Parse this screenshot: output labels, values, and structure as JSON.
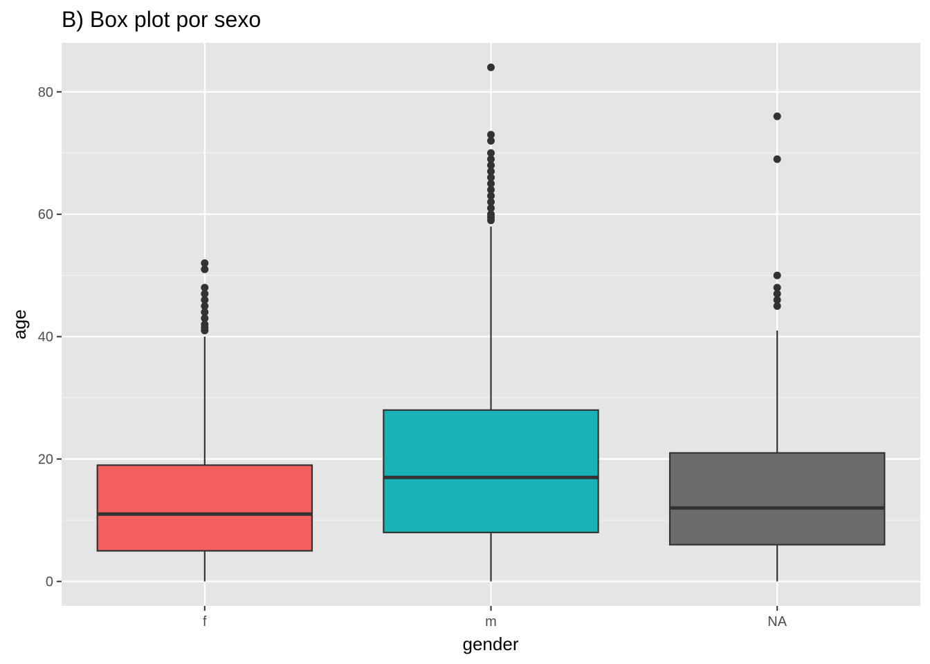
{
  "chart_data": {
    "type": "boxplot",
    "title": "B) Box plot por sexo",
    "xlabel": "gender",
    "ylabel": "age",
    "ylim": [
      -4,
      88
    ],
    "y_ticks": [
      0,
      20,
      40,
      60,
      80
    ],
    "grid": true,
    "legend": "none",
    "categories": [
      "f",
      "m",
      "NA"
    ],
    "series": [
      {
        "category": "f",
        "color": "#F25F5C",
        "min": 0,
        "q1": 5,
        "median": 11,
        "q3": 19,
        "max": 40,
        "outliers": [
          41,
          41.5,
          42,
          43,
          44,
          45,
          46,
          47,
          48,
          51,
          52
        ]
      },
      {
        "category": "m",
        "color": "#17B3B6",
        "min": 0,
        "q1": 8,
        "median": 17,
        "q3": 28,
        "max": 58,
        "outliers": [
          59,
          59.5,
          60,
          61,
          62,
          63,
          64,
          65,
          66,
          67,
          68,
          69,
          70,
          72,
          73,
          84
        ]
      },
      {
        "category": "NA",
        "color": "#6B6B6B",
        "min": 0,
        "q1": 6,
        "median": 12,
        "q3": 21,
        "max": 41,
        "outliers": [
          45,
          46,
          47,
          48,
          50,
          69,
          76
        ]
      }
    ]
  }
}
